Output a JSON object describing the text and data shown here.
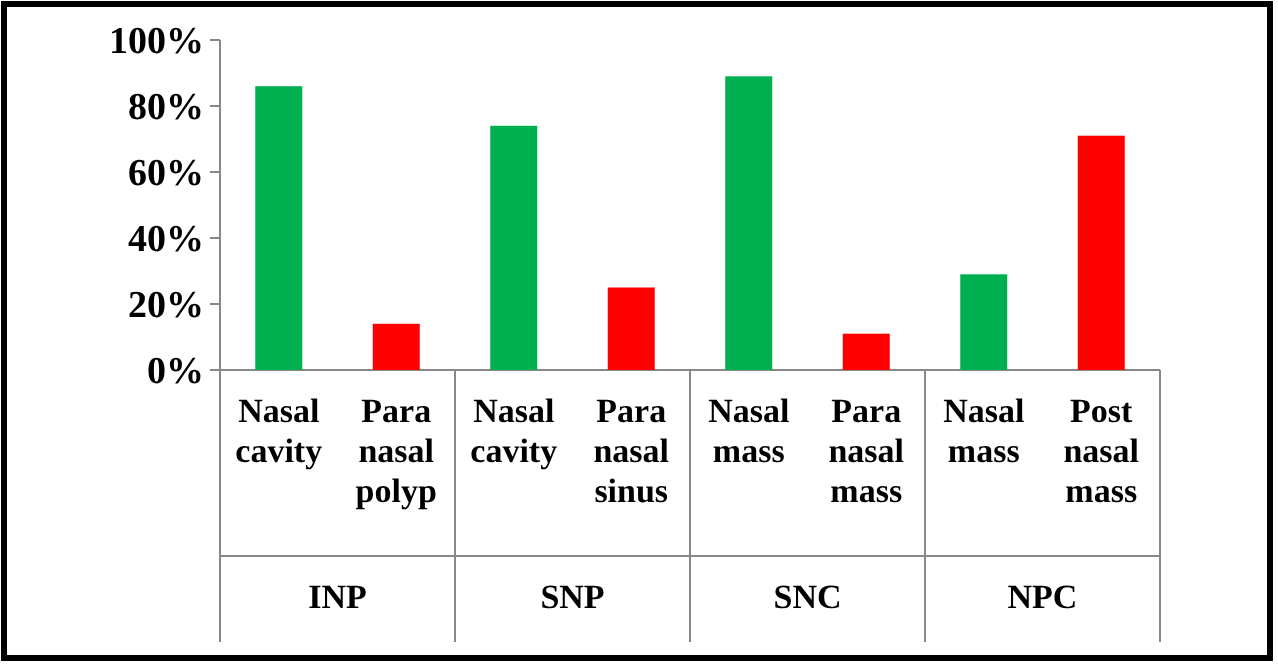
{
  "chart_data": {
    "type": "bar",
    "categories": [
      "Nasal cavity",
      "Para nasal polyp",
      "Nasal cavity",
      "Para nasal sinus",
      "Nasal mass",
      "Para nasal mass",
      "Nasal mass",
      "Post nasal mass"
    ],
    "values": [
      86,
      14,
      74,
      25,
      89,
      11,
      29,
      71
    ],
    "colors": [
      "#00b050",
      "#ff0000",
      "#00b050",
      "#ff0000",
      "#00b050",
      "#ff0000",
      "#00b050",
      "#ff0000"
    ],
    "ylim": [
      0,
      100
    ],
    "yticks": [
      {
        "value": 0,
        "label": "0%"
      },
      {
        "value": 20,
        "label": "20%"
      },
      {
        "value": 40,
        "label": "40%"
      },
      {
        "value": 60,
        "label": "60%"
      },
      {
        "value": 80,
        "label": "80%"
      },
      {
        "value": 100,
        "label": "100%"
      }
    ],
    "annotations": [
      "INP",
      "SNP",
      "SNC",
      "NPC"
    ]
  }
}
